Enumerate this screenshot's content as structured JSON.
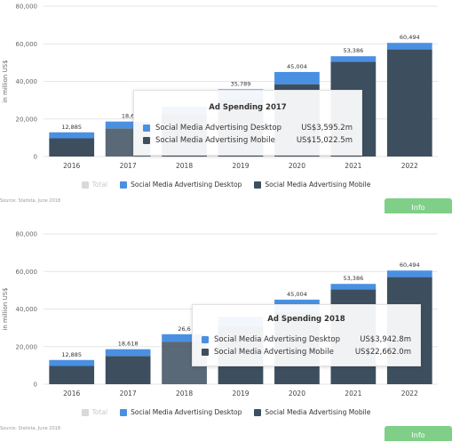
{
  "chart_data": [
    {
      "type": "bar",
      "stacked": true,
      "categories": [
        "2016",
        "2017",
        "2018",
        "2019",
        "2020",
        "2021",
        "2022"
      ],
      "series": [
        {
          "name": "Social Media Advertising Mobile",
          "values": [
            9700,
            15023,
            22662,
            30600,
            38500,
            50500,
            57000
          ]
        },
        {
          "name": "Social Media Advertising Desktop",
          "values": [
            3185,
            3595,
            3943,
            5189,
            6504,
            2886,
            3494
          ]
        }
      ],
      "totals": [
        12885,
        18618,
        26605,
        35789,
        45004,
        53386,
        60494
      ],
      "data_labels": [
        "12,885",
        "18,6",
        "",
        "35,789",
        "45,004",
        "53,386",
        "60,494"
      ],
      "ylabel": "in million US$",
      "ylim": [
        0,
        80000
      ],
      "yticks": [
        "0",
        "20,000",
        "40,000",
        "60,000",
        "80,000"
      ],
      "yticks_values": [
        0,
        20000,
        40000,
        60000,
        80000
      ],
      "grid": true,
      "legend_position": "bottom",
      "highlighted_category": "2017"
    },
    {
      "type": "bar",
      "stacked": true,
      "categories": [
        "2016",
        "2017",
        "2018",
        "2019",
        "2020",
        "2021",
        "2022"
      ],
      "series": [
        {
          "name": "Social Media Advertising Mobile",
          "values": [
            9700,
            15023,
            22662,
            30600,
            38500,
            50500,
            57000
          ]
        },
        {
          "name": "Social Media Advertising Desktop",
          "values": [
            3185,
            3595,
            3943,
            5189,
            6504,
            2886,
            3494
          ]
        }
      ],
      "totals": [
        12885,
        18618,
        26605,
        35789,
        45004,
        53386,
        60494
      ],
      "data_labels": [
        "12,885",
        "18,618",
        "26,6",
        "",
        "45,004",
        "53,386",
        "60,494"
      ],
      "ylabel": "in million US$",
      "ylim": [
        0,
        80000
      ],
      "yticks": [
        "0",
        "20,000",
        "40,000",
        "60,000",
        "80,000"
      ],
      "yticks_values": [
        0,
        20000,
        40000,
        60000,
        80000
      ],
      "grid": true,
      "legend_position": "bottom",
      "highlighted_category": "2018"
    }
  ],
  "panels": [
    {
      "tooltip": {
        "title": "Ad Spending 2017",
        "rows": [
          {
            "label": "Social Media Advertising Desktop",
            "value": "US$3,595.2m"
          },
          {
            "label": "Social Media Advertising Mobile",
            "value": "US$15,022.5m"
          }
        ]
      },
      "legend": {
        "total": "Total",
        "desktop": "Social Media Advertising Desktop",
        "mobile": "Social Media Advertising Mobile"
      },
      "source": "Source: Statista, June 2018",
      "info_label": "Info"
    },
    {
      "tooltip": {
        "title": "Ad Spending 2018",
        "rows": [
          {
            "label": "Social Media Advertising Desktop",
            "value": "US$3,942.8m"
          },
          {
            "label": "Social Media Advertising Mobile",
            "value": "US$22,662.0m"
          }
        ]
      },
      "legend": {
        "total": "Total",
        "desktop": "Social Media Advertising Desktop",
        "mobile": "Social Media Advertising Mobile"
      },
      "source": "Source: Statista, June 2018",
      "info_label": "Info"
    }
  ],
  "colors": {
    "mobile": "#3d4f5f",
    "desktop": "#4a90e2",
    "total": "#d9d9d9",
    "info": "#7fcf88"
  }
}
